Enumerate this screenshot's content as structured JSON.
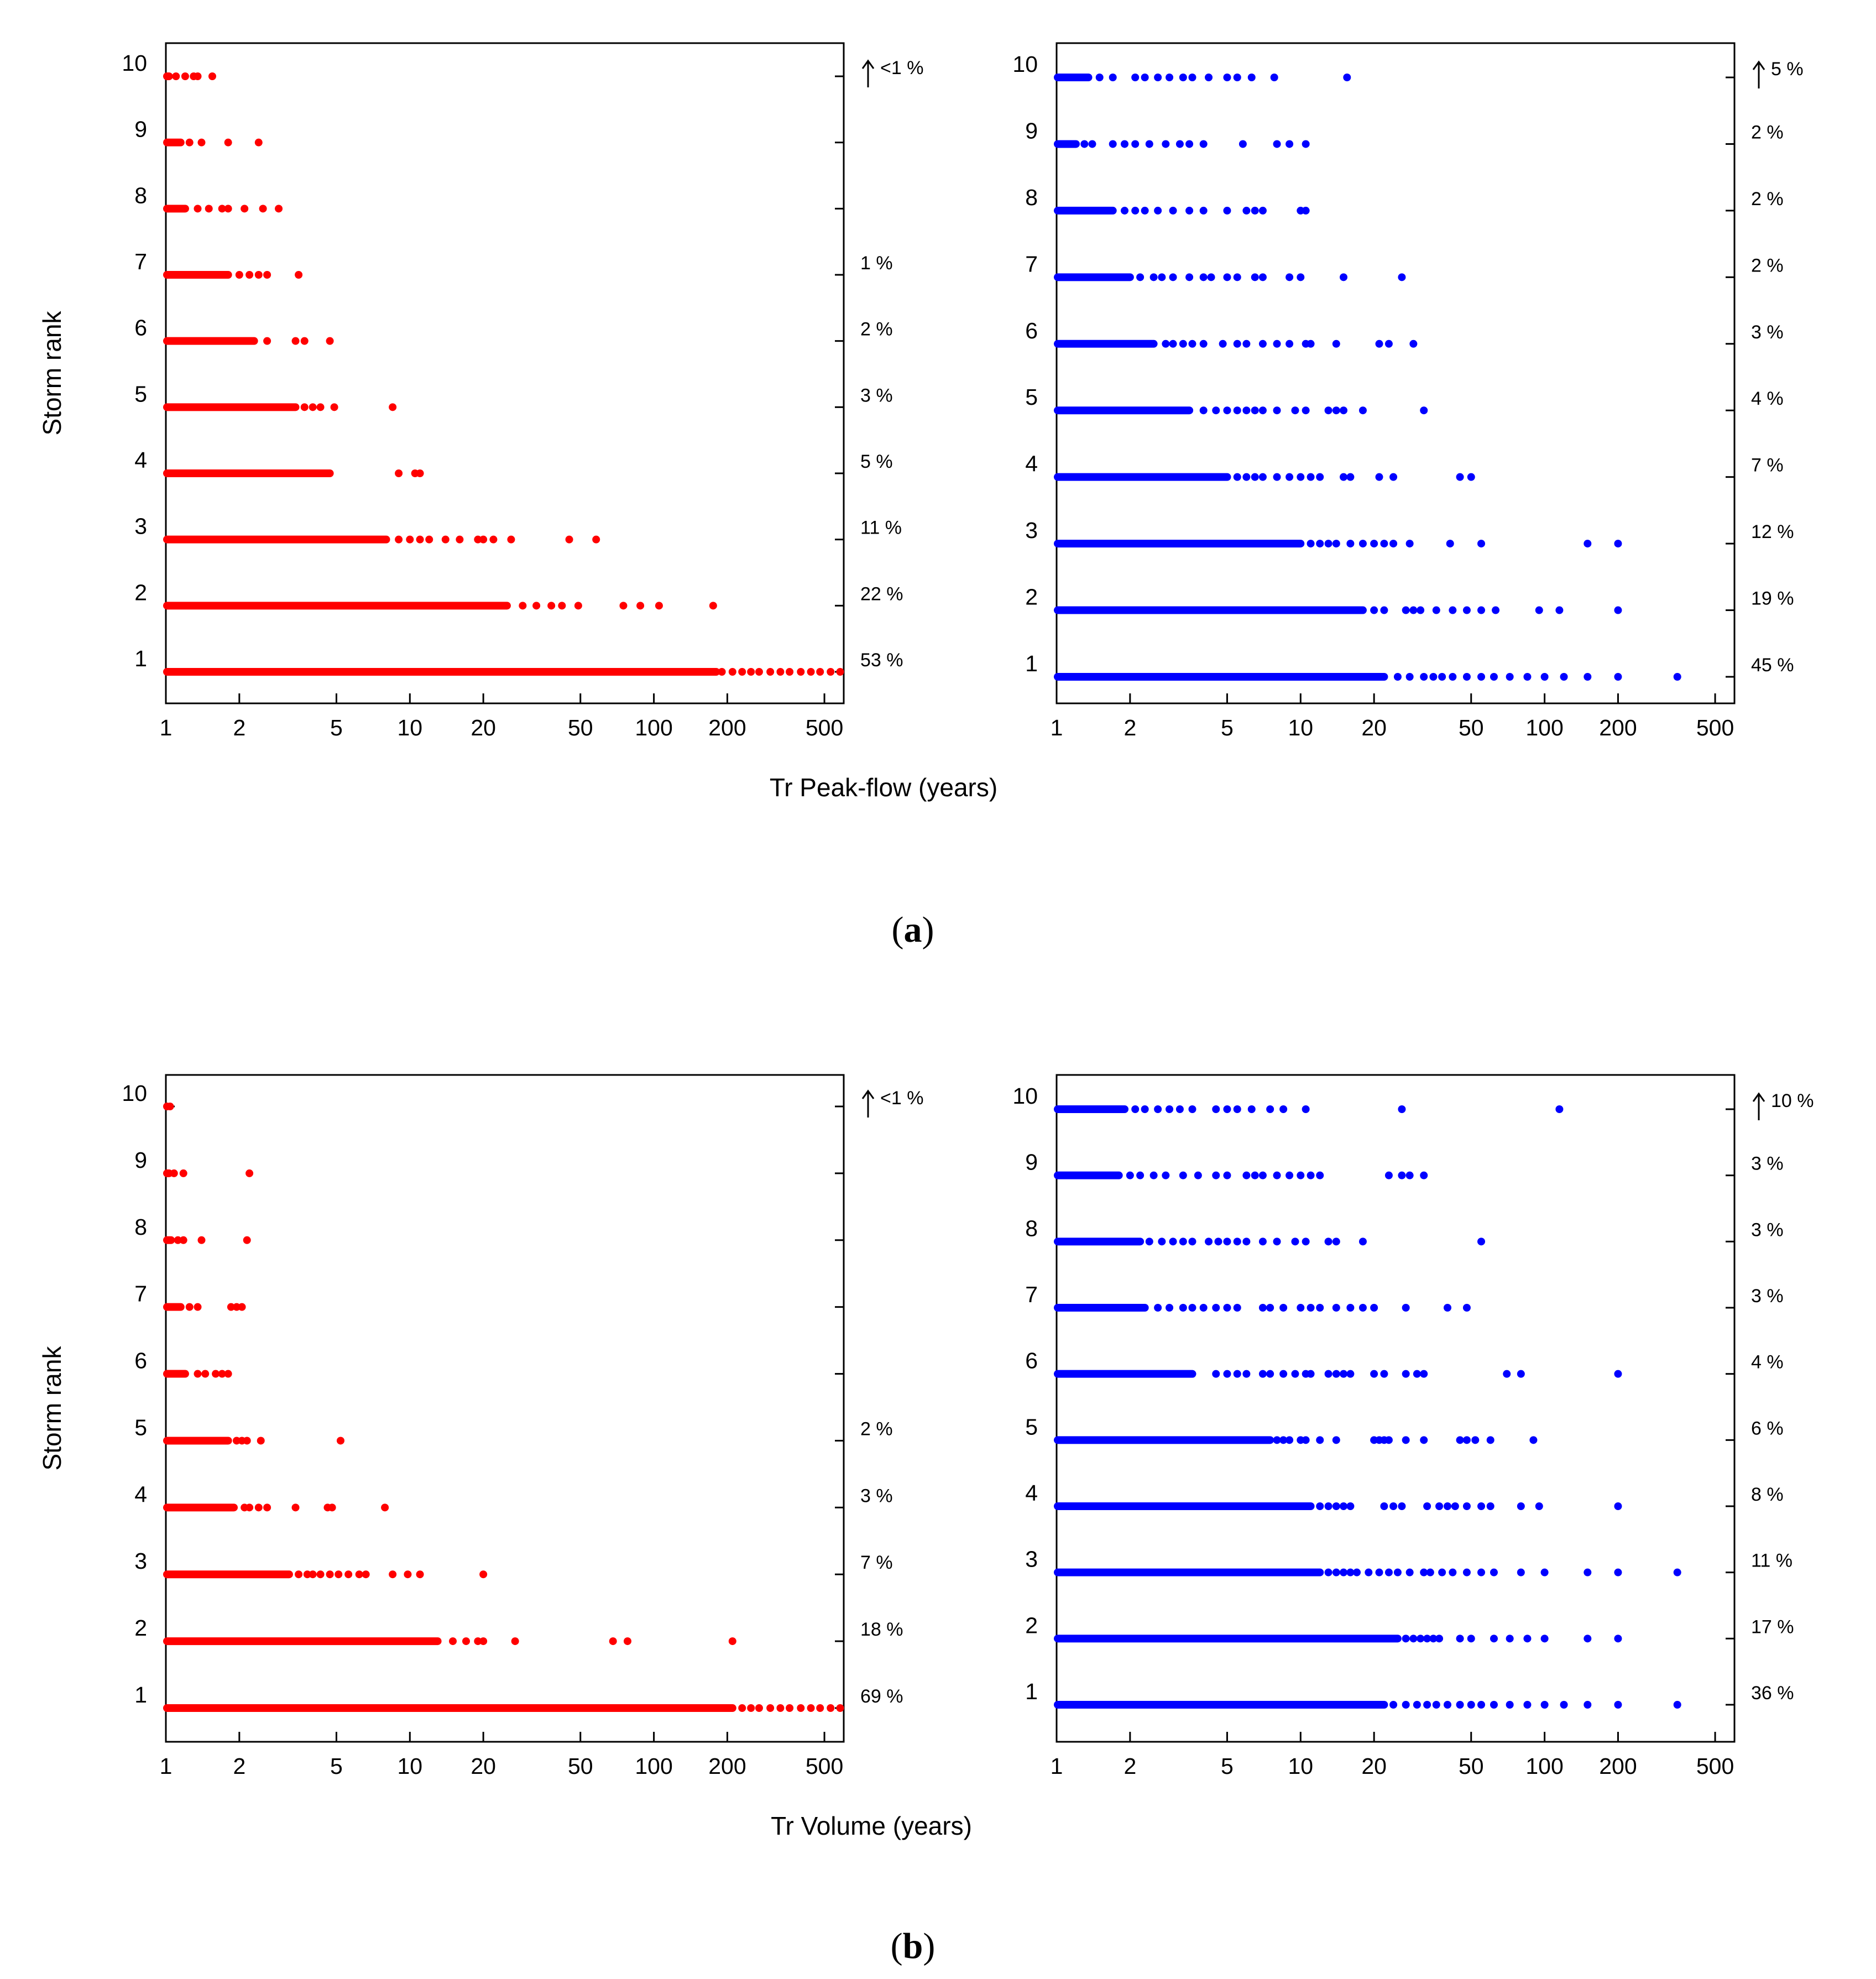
{
  "colors": {
    "ensemble_a": "#ff0000",
    "ensemble_b": "#0000ff",
    "frame": "#000000"
  },
  "figure_labels": {
    "a": "a",
    "b": "b"
  },
  "chart_data": [
    {
      "type": "scatter",
      "id": "a-left",
      "panel": "a",
      "color_key": "ensemble_a",
      "ylabel": "Storm rank",
      "xlabel": "Tr Peak-flow (years)",
      "xscale": "log",
      "xlim": [
        1,
        600
      ],
      "ylim": [
        0.5,
        10.7
      ],
      "x_ticks": [
        "1",
        "2",
        "5",
        "10",
        "20",
        "50",
        "100",
        "200",
        "500"
      ],
      "y_ticks": [
        "1",
        "2",
        "3",
        "4",
        "5",
        "6",
        "7",
        "8",
        "9",
        "10"
      ],
      "percent_labels": [
        {
          "rank": 10,
          "text": "<1 %",
          "arrow": true
        },
        {
          "rank": 7,
          "text": "1 %"
        },
        {
          "rank": 6,
          "text": "2 %"
        },
        {
          "rank": 5,
          "text": "3 %"
        },
        {
          "rank": 4,
          "text": "5 %"
        },
        {
          "rank": 3,
          "text": "11 %"
        },
        {
          "rank": 2,
          "text": "22 %"
        },
        {
          "rank": 1,
          "text": "53 %"
        }
      ],
      "series": [
        {
          "rank": 1,
          "dense_to": 180,
          "sparse": [
            190,
            210,
            230,
            250,
            270,
            300,
            330,
            360,
            400,
            440,
            480,
            530,
            580
          ]
        },
        {
          "rank": 2,
          "dense_to": 25,
          "sparse": [
            29,
            33,
            38,
            42,
            49,
            75,
            88,
            105,
            175
          ]
        },
        {
          "rank": 3,
          "dense_to": 8,
          "sparse": [
            9,
            10,
            11,
            12,
            14,
            16,
            19,
            20,
            22,
            26,
            45,
            58
          ]
        },
        {
          "rank": 4,
          "dense_to": 4.7,
          "sparse": [
            9,
            10.5,
            11
          ]
        },
        {
          "rank": 5,
          "dense_to": 3.4,
          "sparse": [
            3.7,
            4.0,
            4.3,
            4.9,
            8.5
          ]
        },
        {
          "rank": 6,
          "dense_to": 2.3,
          "sparse": [
            2.6,
            3.4,
            3.7,
            4.7
          ]
        },
        {
          "rank": 7,
          "dense_to": 1.8,
          "sparse": [
            2.0,
            2.2,
            2.4,
            2.6,
            3.5
          ]
        },
        {
          "rank": 8,
          "dense_to": 1.2,
          "sparse": [
            1.35,
            1.5,
            1.7,
            1.8,
            2.1,
            2.5,
            2.9
          ]
        },
        {
          "rank": 9,
          "dense_to": 1.15,
          "sparse": [
            1.25,
            1.4,
            1.8,
            2.4
          ]
        },
        {
          "rank": 10,
          "dense_to": 1.03,
          "sparse": [
            1.1,
            1.2,
            1.3,
            1.35,
            1.55
          ]
        }
      ]
    },
    {
      "type": "scatter",
      "id": "a-right",
      "panel": "a",
      "color_key": "ensemble_b",
      "xscale": "log",
      "xlim": [
        1,
        600
      ],
      "ylim": [
        0.5,
        10.7
      ],
      "x_ticks": [
        "1",
        "2",
        "5",
        "10",
        "20",
        "50",
        "100",
        "200",
        "500"
      ],
      "y_ticks": [
        "1",
        "2",
        "3",
        "4",
        "5",
        "6",
        "7",
        "8",
        "9",
        "10"
      ],
      "percent_labels": [
        {
          "rank": 10,
          "text": "5 %",
          "arrow": true
        },
        {
          "rank": 9,
          "text": "2 %"
        },
        {
          "rank": 8,
          "text": "2 %"
        },
        {
          "rank": 7,
          "text": "2 %"
        },
        {
          "rank": 6,
          "text": "3 %"
        },
        {
          "rank": 5,
          "text": "4 %"
        },
        {
          "rank": 4,
          "text": "7 %"
        },
        {
          "rank": 3,
          "text": "12 %"
        },
        {
          "rank": 2,
          "text": "19 %"
        },
        {
          "rank": 1,
          "text": "45 %"
        }
      ],
      "series": [
        {
          "rank": 1,
          "dense_to": 22,
          "sparse": [
            25,
            28,
            32,
            35,
            38,
            42,
            48,
            55,
            62,
            72,
            85,
            100,
            120,
            150,
            200,
            350
          ]
        },
        {
          "rank": 2,
          "dense_to": 18,
          "sparse": [
            20,
            22,
            27,
            29,
            31,
            36,
            42,
            48,
            55,
            63,
            95,
            115,
            200
          ]
        },
        {
          "rank": 3,
          "dense_to": 10,
          "sparse": [
            11,
            12,
            13,
            14,
            16,
            18,
            20,
            22,
            24,
            28,
            41,
            55,
            150,
            200
          ]
        },
        {
          "rank": 4,
          "dense_to": 5,
          "sparse": [
            5.5,
            6,
            6.5,
            7,
            8,
            9,
            10,
            11,
            12,
            15,
            16,
            21,
            24,
            45,
            50
          ]
        },
        {
          "rank": 5,
          "dense_to": 3.5,
          "sparse": [
            4,
            4.5,
            5,
            5.5,
            6,
            6.5,
            7,
            8,
            9.5,
            10.5,
            13,
            14,
            15,
            18,
            32
          ]
        },
        {
          "rank": 6,
          "dense_to": 2.5,
          "sparse": [
            2.8,
            3,
            3.3,
            3.6,
            4,
            4.8,
            5.5,
            6,
            7,
            8,
            9,
            10.5,
            11,
            14,
            21,
            23,
            29
          ]
        },
        {
          "rank": 7,
          "dense_to": 2.0,
          "sparse": [
            2.2,
            2.5,
            2.7,
            3,
            3.5,
            4,
            4.3,
            5,
            5.5,
            6.5,
            7,
            9,
            10,
            15,
            26
          ]
        },
        {
          "rank": 8,
          "dense_to": 1.7,
          "sparse": [
            1.9,
            2.1,
            2.3,
            2.6,
            3,
            3.5,
            4,
            5,
            6,
            6.5,
            7,
            10,
            10.5
          ]
        },
        {
          "rank": 9,
          "dense_to": 1.2,
          "sparse": [
            1.3,
            1.4,
            1.7,
            1.9,
            2.1,
            2.4,
            2.8,
            3.2,
            3.5,
            4,
            5.8,
            8,
            9,
            10.5
          ]
        },
        {
          "rank": 10,
          "dense_to": 1.35,
          "sparse": [
            1.5,
            1.7,
            2.1,
            2.3,
            2.6,
            2.9,
            3.3,
            3.6,
            4.2,
            5,
            5.5,
            6.3,
            7.8,
            15.5
          ]
        }
      ]
    },
    {
      "type": "scatter",
      "id": "b-left",
      "panel": "b",
      "color_key": "ensemble_a",
      "ylabel": "Storm rank",
      "xlabel": "Tr Volume (years)",
      "xscale": "log",
      "xlim": [
        1,
        600
      ],
      "ylim": [
        0.5,
        10.7
      ],
      "x_ticks": [
        "1",
        "2",
        "5",
        "10",
        "20",
        "50",
        "100",
        "200",
        "500"
      ],
      "y_ticks": [
        "1",
        "2",
        "3",
        "4",
        "5",
        "6",
        "7",
        "8",
        "9",
        "10"
      ],
      "percent_labels": [
        {
          "rank": 10,
          "text": "<1 %",
          "arrow": true
        },
        {
          "rank": 5,
          "text": "2 %"
        },
        {
          "rank": 4,
          "text": "3 %"
        },
        {
          "rank": 3,
          "text": "7 %"
        },
        {
          "rank": 2,
          "text": "18 %"
        },
        {
          "rank": 1,
          "text": "69 %"
        }
      ],
      "series": [
        {
          "rank": 1,
          "dense_to": 210,
          "sparse": [
            230,
            250,
            270,
            300,
            330,
            360,
            400,
            440,
            480,
            530,
            580
          ]
        },
        {
          "rank": 2,
          "dense_to": 13,
          "sparse": [
            15,
            17,
            19,
            20,
            27,
            68,
            78,
            210
          ]
        },
        {
          "rank": 3,
          "dense_to": 3.2,
          "sparse": [
            3.5,
            3.8,
            4,
            4.3,
            4.7,
            5.1,
            5.6,
            6.2,
            6.6,
            8.5,
            9.8,
            11,
            20
          ]
        },
        {
          "rank": 4,
          "dense_to": 1.9,
          "sparse": [
            2.1,
            2.2,
            2.4,
            2.6,
            3.4,
            4.6,
            4.8,
            7.9
          ]
        },
        {
          "rank": 5,
          "dense_to": 1.8,
          "sparse": [
            1.95,
            2.05,
            2.15,
            2.45,
            5.2
          ]
        },
        {
          "rank": 6,
          "dense_to": 1.2,
          "sparse": [
            1.35,
            1.45,
            1.6,
            1.7,
            1.8
          ]
        },
        {
          "rank": 7,
          "dense_to": 1.15,
          "sparse": [
            1.25,
            1.35,
            1.85,
            1.95,
            2.05
          ]
        },
        {
          "rank": 8,
          "dense_to": 1.05,
          "sparse": [
            1.12,
            1.18,
            1.4,
            2.15
          ]
        },
        {
          "rank": 9,
          "dense_to": 1.03,
          "sparse": [
            1.08,
            1.18,
            2.2
          ]
        },
        {
          "rank": 10,
          "dense_to": 1.01,
          "sparse": [
            1.04
          ]
        }
      ]
    },
    {
      "type": "scatter",
      "id": "b-right",
      "panel": "b",
      "color_key": "ensemble_b",
      "xscale": "log",
      "xlim": [
        1,
        600
      ],
      "ylim": [
        0.5,
        10.7
      ],
      "x_ticks": [
        "1",
        "2",
        "5",
        "10",
        "20",
        "50",
        "100",
        "200",
        "500"
      ],
      "y_ticks": [
        "1",
        "2",
        "3",
        "4",
        "5",
        "6",
        "7",
        "8",
        "9",
        "10"
      ],
      "percent_labels": [
        {
          "rank": 10,
          "text": "10 %",
          "arrow": true
        },
        {
          "rank": 9,
          "text": "3 %"
        },
        {
          "rank": 8,
          "text": "3 %"
        },
        {
          "rank": 7,
          "text": "3 %"
        },
        {
          "rank": 6,
          "text": "4 %"
        },
        {
          "rank": 5,
          "text": "6 %"
        },
        {
          "rank": 4,
          "text": "8 %"
        },
        {
          "rank": 3,
          "text": "11 %"
        },
        {
          "rank": 2,
          "text": "17 %"
        },
        {
          "rank": 1,
          "text": "36 %"
        }
      ],
      "series": [
        {
          "rank": 1,
          "dense_to": 22,
          "sparse": [
            24,
            27,
            30,
            33,
            36,
            40,
            45,
            50,
            55,
            62,
            72,
            85,
            100,
            120,
            150,
            200,
            350
          ]
        },
        {
          "rank": 2,
          "dense_to": 25,
          "sparse": [
            27,
            29,
            31,
            33,
            35,
            37,
            45,
            50,
            62,
            72,
            85,
            100,
            150,
            200
          ]
        },
        {
          "rank": 3,
          "dense_to": 12,
          "sparse": [
            13,
            14,
            15,
            16,
            17,
            19,
            21,
            23,
            25,
            28,
            32,
            34,
            38,
            42,
            48,
            55,
            62,
            80,
            100,
            150,
            200,
            350
          ]
        },
        {
          "rank": 4,
          "dense_to": 11,
          "sparse": [
            12,
            13,
            14,
            15,
            16,
            22,
            24,
            26,
            33,
            37,
            40,
            43,
            48,
            55,
            60,
            80,
            95,
            200
          ]
        },
        {
          "rank": 5,
          "dense_to": 7.5,
          "sparse": [
            8,
            8.5,
            9,
            10,
            10.5,
            12,
            14,
            20,
            21,
            22,
            23,
            27,
            32,
            45,
            48,
            52,
            60,
            90
          ]
        },
        {
          "rank": 6,
          "dense_to": 3.6,
          "sparse": [
            4.5,
            5,
            5.5,
            6,
            7,
            7.5,
            8.5,
            9.5,
            10.5,
            11,
            13,
            14,
            15,
            16,
            20,
            22,
            27,
            30,
            32,
            70,
            80,
            200
          ]
        },
        {
          "rank": 7,
          "dense_to": 2.3,
          "sparse": [
            2.6,
            2.9,
            3.3,
            3.6,
            4,
            4.5,
            5,
            5.5,
            7,
            7.5,
            8.5,
            10,
            11,
            12,
            14,
            16,
            18,
            20,
            27,
            40,
            48
          ]
        },
        {
          "rank": 8,
          "dense_to": 2.2,
          "sparse": [
            2.4,
            2.7,
            3,
            3.3,
            3.6,
            4.2,
            4.6,
            5,
            5.5,
            6,
            7,
            8,
            9.5,
            10.5,
            13,
            14,
            18,
            55
          ]
        },
        {
          "rank": 9,
          "dense_to": 1.8,
          "sparse": [
            2,
            2.2,
            2.5,
            2.8,
            3.3,
            3.8,
            4.5,
            5,
            6,
            6.5,
            7,
            8,
            9,
            10,
            11,
            12,
            23,
            26,
            28,
            32
          ]
        },
        {
          "rank": 10,
          "dense_to": 1.9,
          "sparse": [
            2.1,
            2.3,
            2.6,
            2.9,
            3.2,
            3.6,
            4.5,
            5,
            5.5,
            6.3,
            7.5,
            8.5,
            10.5,
            26,
            115
          ]
        }
      ]
    }
  ]
}
